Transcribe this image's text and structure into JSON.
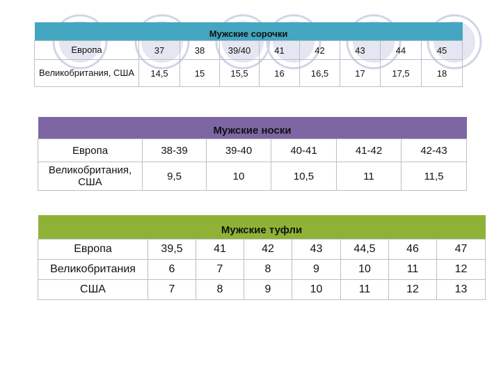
{
  "shirts": {
    "title": "Мужские сорочки",
    "header_color": "#44a6c0",
    "rows": [
      {
        "label": "Европа",
        "values": [
          "37",
          "38",
          "39/40",
          "41",
          "42",
          "43",
          "44",
          "45"
        ]
      },
      {
        "label": "Великобритания, США",
        "values": [
          "14,5",
          "15",
          "15,5",
          "16",
          "16,5",
          "17",
          "17,5",
          "18"
        ]
      }
    ]
  },
  "socks": {
    "title": "Мужские носки",
    "header_color": "#7d66a3",
    "rows": [
      {
        "label": "Европа",
        "values": [
          "38-39",
          "39-40",
          "40-41",
          "41-42",
          "42-43"
        ]
      },
      {
        "label": "Великобритания, США",
        "values": [
          "9,5",
          "10",
          "10,5",
          "11",
          "11,5"
        ]
      }
    ]
  },
  "shoes": {
    "title": "Мужские туфли",
    "header_color": "#8fb236",
    "rows": [
      {
        "label": "Европа",
        "values": [
          "39,5",
          "41",
          "42",
          "43",
          "44,5",
          "46",
          "47"
        ]
      },
      {
        "label": "Великобритания",
        "values": [
          "6",
          "7",
          "8",
          "9",
          "10",
          "11",
          "12"
        ]
      },
      {
        "label": "США",
        "values": [
          "7",
          "8",
          "9",
          "10",
          "11",
          "12",
          "13"
        ]
      }
    ]
  }
}
